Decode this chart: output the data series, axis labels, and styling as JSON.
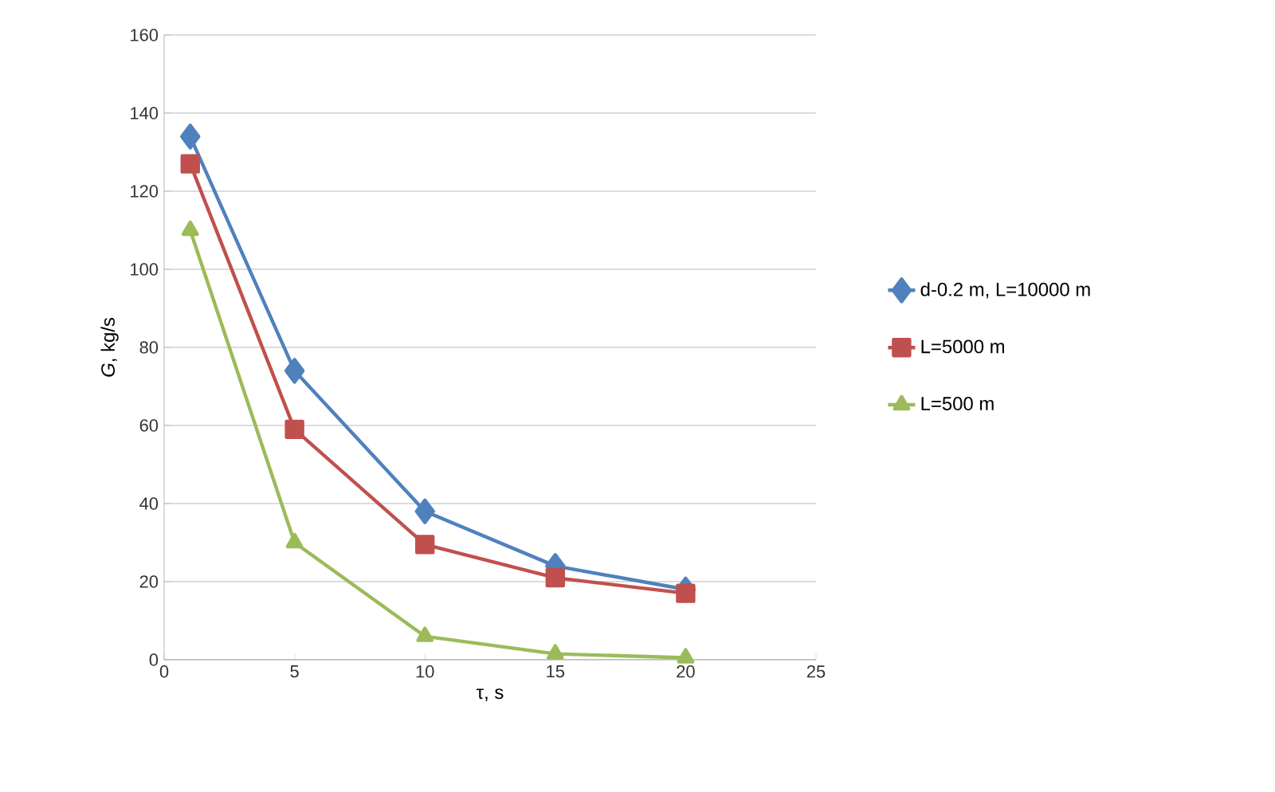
{
  "chart_data": {
    "type": "line",
    "xlabel": "τ, s",
    "ylabel": "*G*, kg/s",
    "x": [
      1,
      5,
      10,
      15,
      20
    ],
    "xlim": [
      0,
      25
    ],
    "xticks": [
      0,
      5,
      10,
      15,
      20,
      25
    ],
    "ylim": [
      0,
      160
    ],
    "yticks": [
      0,
      20,
      40,
      60,
      80,
      100,
      120,
      140,
      160
    ],
    "grid": "y",
    "legend": "right",
    "series": [
      {
        "name": "d-0.2 m, L=10000 m",
        "color": "#4f81bd",
        "marker": "diamond",
        "values": [
          134,
          74,
          38,
          24,
          18
        ]
      },
      {
        "name": "L=5000 m",
        "color": "#c0504d",
        "marker": "square",
        "values": [
          127,
          59,
          29.5,
          21,
          17
        ]
      },
      {
        "name": "L=500 m",
        "color": "#9bbb59",
        "marker": "triangle",
        "values": [
          110,
          30,
          6,
          1.5,
          0.5
        ]
      }
    ]
  }
}
